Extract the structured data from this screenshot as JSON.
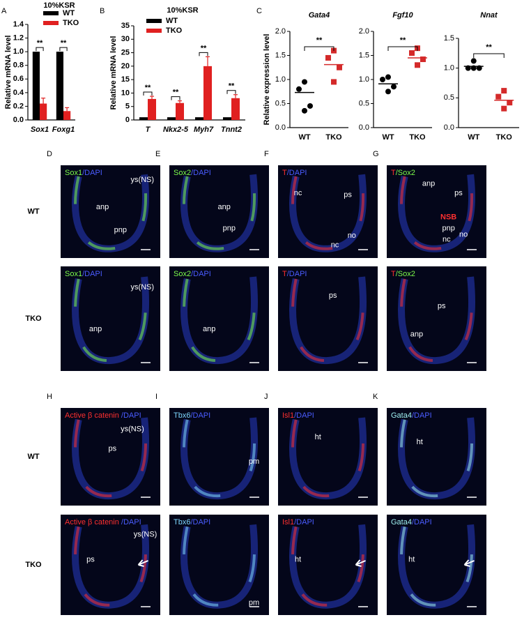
{
  "chart_data": [
    {
      "type": "bar",
      "panel": "A",
      "title": "10%KSR",
      "ylabel": "Relative mRNA level",
      "categories": [
        "Sox1",
        "Foxg1"
      ],
      "series": [
        {
          "name": "WT",
          "color": "#000000",
          "values": [
            1.0,
            1.0
          ]
        },
        {
          "name": "TKO",
          "color": "#e02020",
          "values": [
            0.24,
            0.13
          ],
          "errors": [
            0.08,
            0.05
          ]
        }
      ],
      "significance": [
        "**",
        "**"
      ],
      "ylim": [
        0,
        1.4
      ],
      "yticks": [
        {
          "value": 0,
          "label": "0.0"
        },
        0.2,
        0.4,
        0.6,
        0.8,
        {
          "value": 1,
          "label": "1.0"
        },
        1.2,
        1.4
      ]
    },
    {
      "type": "bar",
      "panel": "B",
      "title": "10%KSR",
      "ylabel": "Relative mRNA level",
      "categories": [
        "T",
        "Nkx2-5",
        "Myh7",
        "Tnnt2"
      ],
      "series": [
        {
          "name": "WT",
          "color": "#000000",
          "values": [
            1,
            1,
            1,
            1
          ]
        },
        {
          "name": "TKO",
          "color": "#e02020",
          "values": [
            7.8,
            6.3,
            20,
            8.1
          ],
          "errors": [
            1,
            0.8,
            3.5,
            1.3
          ]
        }
      ],
      "significance": [
        "**",
        "**",
        "**",
        "**"
      ],
      "ylim": [
        0,
        35
      ],
      "yticks": [
        0,
        5,
        10,
        15,
        20,
        25,
        30,
        35
      ]
    },
    {
      "type": "dot",
      "panel": "C",
      "title": "Gata4",
      "ylabel": "Relative expression  level",
      "categories": [
        "WT",
        "TKO"
      ],
      "groups": [
        {
          "color": "#000000",
          "marker": "circle",
          "values": [
            0.95,
            0.8,
            0.45,
            0.35
          ],
          "mean": 0.73
        },
        {
          "color": "#d42a2a",
          "marker": "square",
          "values": [
            1.6,
            1.45,
            1.25,
            0.95
          ],
          "mean": 1.31
        }
      ],
      "significance": "**",
      "ylim": [
        0,
        2
      ],
      "yticks": [
        {
          "value": 0,
          "label": "0.0"
        },
        0.5,
        {
          "value": 1,
          "label": "1.0"
        },
        1.5,
        {
          "value": 2,
          "label": "2.0"
        }
      ]
    },
    {
      "type": "dot",
      "title": "Fgf10",
      "categories": [
        "WT",
        "TKO"
      ],
      "groups": [
        {
          "color": "#000000",
          "marker": "circle",
          "values": [
            1.05,
            1.0,
            0.85,
            0.75
          ],
          "mean": 0.91
        },
        {
          "color": "#d42a2a",
          "marker": "square",
          "values": [
            1.65,
            1.55,
            1.42,
            1.3
          ],
          "mean": 1.45
        }
      ],
      "significance": "**",
      "ylim": [
        0,
        2
      ],
      "yticks": [
        {
          "value": 0,
          "label": "0.0"
        },
        0.5,
        {
          "value": 1,
          "label": "1.0"
        },
        1.5,
        {
          "value": 2,
          "label": "2.0"
        }
      ]
    },
    {
      "type": "dot",
      "title": "Nnat",
      "categories": [
        "WT",
        "TKO"
      ],
      "groups": [
        {
          "color": "#000000",
          "marker": "circle",
          "values": [
            1.12,
            1.0,
            1.0,
            1.0
          ],
          "mean": 1.03
        },
        {
          "color": "#d42a2a",
          "marker": "square",
          "values": [
            0.62,
            0.52,
            0.42,
            0.32
          ],
          "mean": 0.46
        }
      ],
      "significance": "**",
      "ylim": [
        0,
        1.5
      ],
      "yticks": [
        {
          "value": 0,
          "label": "0.0"
        },
        0.5,
        {
          "value": 1,
          "label": "1.0"
        },
        1.5
      ]
    }
  ],
  "image_panels": {
    "row_labels": [
      "WT",
      "TKO",
      "WT",
      "TKO"
    ],
    "panels": [
      {
        "letter": "D",
        "stains": [
          {
            "text": "Sox1",
            "color": "#7cfc4a"
          },
          {
            "text": "/DAPI",
            "color": "#4a5cff"
          }
        ],
        "wt": [
          "ys(NS)",
          "anp",
          "pnp"
        ],
        "tko": [
          "ys(NS)",
          "anp"
        ]
      },
      {
        "letter": "E",
        "stains": [
          {
            "text": "Sox2",
            "color": "#7cfc4a"
          },
          {
            "text": "/DAPI",
            "color": "#4a5cff"
          }
        ],
        "wt": [
          "anp",
          "pnp"
        ],
        "tko": [
          "anp"
        ]
      },
      {
        "letter": "F",
        "stains": [
          {
            "text": "T",
            "color": "#ff3030"
          },
          {
            "text": "/DAPI",
            "color": "#4a5cff"
          }
        ],
        "wt": [
          "nc",
          "ps",
          "no",
          "nc"
        ],
        "tko": [
          "ps"
        ]
      },
      {
        "letter": "G",
        "stains": [
          {
            "text": "T",
            "color": "#ff3030"
          },
          {
            "text": "/Sox2",
            "color": "#7cfc4a"
          }
        ],
        "wt": [
          "anp",
          "ps",
          {
            "text": "NSB",
            "color": "#ff3030"
          },
          "pnp",
          "nc",
          "no"
        ],
        "tko": [
          "ps",
          "anp"
        ]
      },
      {
        "letter": "H",
        "stains": [
          {
            "text": "Active β catenin ",
            "color": "#ff3030"
          },
          {
            "text": "/DAPI",
            "color": "#4a5cff"
          }
        ],
        "wt": [
          "ys(NS)",
          "ps"
        ],
        "tko": [
          "ys(NS)",
          "ps"
        ],
        "tko_arrow": true
      },
      {
        "letter": "I",
        "stains": [
          {
            "text": "Tbx6",
            "color": "#7fd8ff"
          },
          {
            "text": "/DAPI",
            "color": "#4a5cff"
          }
        ],
        "wt": [
          "pm"
        ],
        "tko": [
          "pm"
        ]
      },
      {
        "letter": "J",
        "stains": [
          {
            "text": "Isl1",
            "color": "#ff3030"
          },
          {
            "text": "/DAPI",
            "color": "#4a5cff"
          }
        ],
        "wt": [
          "ht"
        ],
        "tko": [
          "ht"
        ],
        "tko_arrow": true
      },
      {
        "letter": "K",
        "stains": [
          {
            "text": "Gata4",
            "color": "#9ff0f0"
          },
          {
            "text": "/DAPI",
            "color": "#4a5cff"
          }
        ],
        "wt": [
          "ht"
        ],
        "tko": [
          "ht"
        ],
        "tko_arrow": true
      }
    ]
  }
}
